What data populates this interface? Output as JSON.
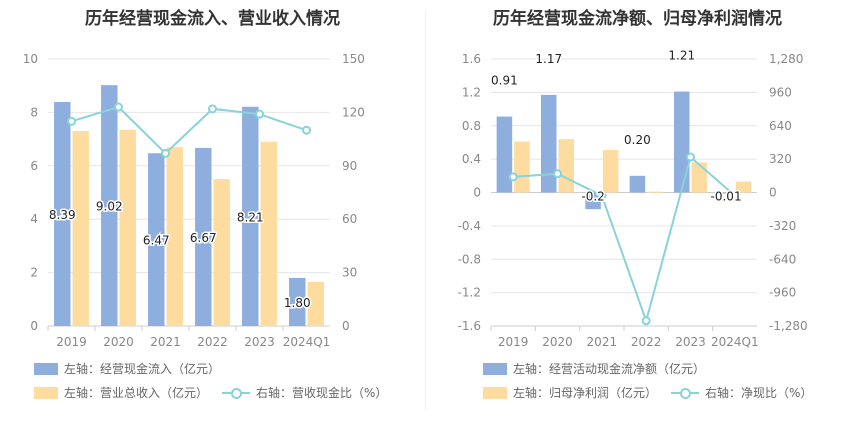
{
  "charts": {
    "left": {
      "title": "历年经营现金流入、营业收入情况",
      "legend": {
        "series1": "左轴：经营现金流入（亿元）",
        "series2": "左轴：营业总收入（亿元）",
        "series3": "右轴：营收现金比（%）"
      }
    },
    "right": {
      "title": "历年经营现金流净额、归母净利润情况",
      "legend": {
        "series1": "左轴：经营活动现金流净额（亿元）",
        "series2": "左轴：归母净利润（亿元）",
        "series3": "右轴：净现比（%）"
      }
    }
  },
  "colors": {
    "bar1": "#8eaede",
    "bar2": "#fedc9f",
    "line": "#88d3da"
  },
  "chart_data": [
    {
      "type": "bar",
      "title": "历年经营现金流入、营业收入情况",
      "categories": [
        "2019",
        "2020",
        "2021",
        "2022",
        "2023",
        "2024Q1"
      ],
      "left_axis": {
        "ylim": [
          0,
          10
        ],
        "ticks": [
          0,
          2,
          4,
          6,
          8,
          10
        ]
      },
      "right_axis": {
        "ylim": [
          0,
          150
        ],
        "ticks": [
          0,
          30,
          60,
          90,
          120,
          150
        ]
      },
      "series": [
        {
          "name": "左轴：经营现金流入（亿元）",
          "axis": "left",
          "kind": "bar",
          "values": [
            8.39,
            9.02,
            6.47,
            6.67,
            8.21,
            1.8
          ],
          "labels": [
            "8.39",
            "9.02",
            "6.47",
            "6.67",
            "8.21",
            "1.80"
          ]
        },
        {
          "name": "左轴：营业总收入（亿元）",
          "axis": "left",
          "kind": "bar",
          "values": [
            7.3,
            7.35,
            6.7,
            5.5,
            6.9,
            1.65
          ]
        },
        {
          "name": "右轴：营收现金比（%）",
          "axis": "right",
          "kind": "line",
          "values": [
            115,
            123,
            97,
            122,
            119,
            110
          ]
        }
      ]
    },
    {
      "type": "bar",
      "title": "历年经营现金流净额、归母净利润情况",
      "categories": [
        "2019",
        "2020",
        "2021",
        "2022",
        "2023",
        "2024Q1"
      ],
      "left_axis": {
        "ylim": [
          -1.6,
          1.6
        ],
        "ticks": [
          -1.6,
          -1.2,
          -0.8,
          -0.4,
          0,
          0.4,
          0.8,
          1.2,
          1.6
        ]
      },
      "right_axis": {
        "ylim": [
          -1280,
          1280
        ],
        "ticks": [
          "-1,280",
          "-960",
          "-640",
          "-320",
          "0",
          "320",
          "640",
          "960",
          "1,280"
        ]
      },
      "series": [
        {
          "name": "左轴：经营活动现金流净额（亿元）",
          "axis": "left",
          "kind": "bar",
          "values": [
            0.91,
            1.17,
            -0.2,
            0.2,
            1.21,
            -0.01
          ],
          "labels": [
            "0.91",
            "1.17",
            "-0.2",
            "0.20",
            "1.21",
            "-0.01"
          ]
        },
        {
          "name": "左轴：归母净利润（亿元）",
          "axis": "left",
          "kind": "bar",
          "values": [
            0.61,
            0.64,
            0.51,
            0.01,
            0.36,
            0.13
          ]
        },
        {
          "name": "右轴：净现比（%）",
          "axis": "right",
          "kind": "line",
          "values": [
            150,
            180,
            -30,
            -1230,
            340,
            -30
          ]
        }
      ]
    }
  ]
}
